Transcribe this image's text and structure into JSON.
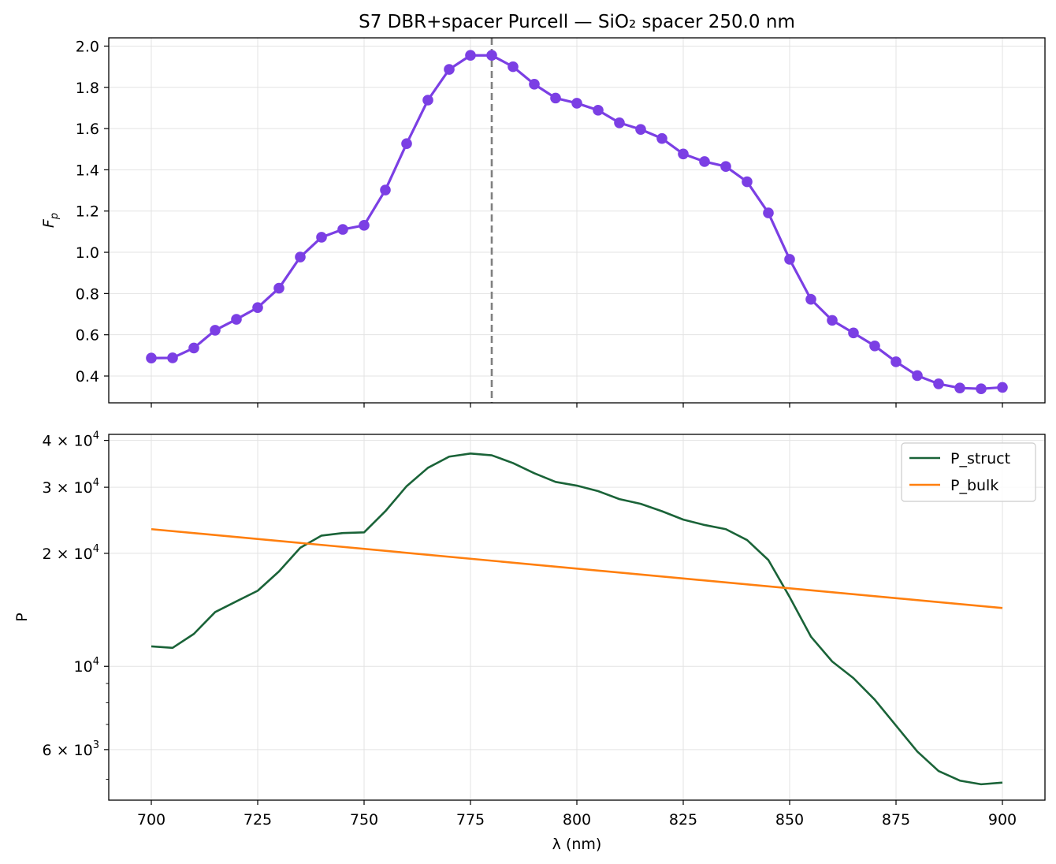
{
  "chart_data": [
    {
      "type": "line",
      "title": "S7 DBR+spacer Purcell — SiO₂ spacer 250.0 nm",
      "xlabel": "",
      "ylabel": "F_p",
      "xlim": [
        690,
        910
      ],
      "ylim": [
        0.27,
        2.04
      ],
      "xticks": [
        700,
        725,
        750,
        775,
        800,
        825,
        850,
        875,
        900
      ],
      "yticks": [
        0.4,
        0.6,
        0.8,
        1.0,
        1.2,
        1.4,
        1.6,
        1.8,
        2.0
      ],
      "ytick_labels": [
        "0.4",
        "0.6",
        "0.8",
        "1.0",
        "1.2",
        "1.4",
        "1.6",
        "1.8",
        "2.0"
      ],
      "grid": true,
      "vline": {
        "x": 780,
        "style": "dashed",
        "color": "#808080"
      },
      "series": [
        {
          "color": "#7b3fe4",
          "marker": "circle",
          "x": [
            700,
            705,
            710,
            715,
            720,
            725,
            730,
            735,
            740,
            745,
            750,
            755,
            760,
            765,
            770,
            775,
            780,
            785,
            790,
            795,
            800,
            805,
            810,
            815,
            820,
            825,
            830,
            835,
            840,
            845,
            850,
            855,
            860,
            865,
            870,
            875,
            880,
            885,
            890,
            895,
            900
          ],
          "values": [
            0.487,
            0.488,
            0.536,
            0.622,
            0.675,
            0.732,
            0.826,
            0.977,
            1.073,
            1.111,
            1.131,
            1.302,
            1.527,
            1.738,
            1.887,
            1.955,
            1.955,
            1.9,
            1.815,
            1.748,
            1.723,
            1.689,
            1.628,
            1.596,
            1.552,
            1.477,
            1.44,
            1.416,
            1.342,
            1.191,
            0.966,
            0.772,
            0.67,
            0.609,
            0.546,
            0.469,
            0.402,
            0.362,
            0.342,
            0.338,
            0.345
          ]
        }
      ]
    },
    {
      "type": "line",
      "title": "",
      "xlabel": "λ (nm)",
      "ylabel": "P",
      "yscale": "log",
      "xlim": [
        690,
        910
      ],
      "ylim": [
        4400,
        41500
      ],
      "xticks": [
        700,
        725,
        750,
        775,
        800,
        825,
        850,
        875,
        900
      ],
      "major_yticks": [
        {
          "value": 6000,
          "base": "6 × 10",
          "exp": "3"
        },
        {
          "value": 10000,
          "base": "10",
          "exp": "4"
        },
        {
          "value": 20000,
          "base": "2 × 10",
          "exp": "4"
        },
        {
          "value": 30000,
          "base": "3 × 10",
          "exp": "4"
        },
        {
          "value": 40000,
          "base": "4 × 10",
          "exp": "4"
        }
      ],
      "minor_yticks": [
        5000,
        7000,
        8000,
        9000
      ],
      "grid": true,
      "legend": {
        "position": "top-right"
      },
      "series": [
        {
          "name": "P_struct",
          "color": "#1a6338",
          "x": [
            700,
            705,
            710,
            715,
            720,
            725,
            730,
            735,
            740,
            745,
            750,
            755,
            760,
            765,
            770,
            775,
            780,
            785,
            790,
            795,
            800,
            805,
            810,
            815,
            820,
            825,
            830,
            835,
            840,
            845,
            850,
            855,
            860,
            865,
            870,
            875,
            880,
            885,
            890,
            895,
            900
          ],
          "values": [
            11300,
            11200,
            12200,
            13950,
            14900,
            15900,
            17900,
            20700,
            22300,
            22650,
            22750,
            25900,
            30200,
            33800,
            36200,
            36900,
            36500,
            34800,
            32700,
            31000,
            30300,
            29300,
            27900,
            27100,
            25900,
            24600,
            23800,
            23200,
            21700,
            19200,
            15300,
            12000,
            10300,
            9300,
            8150,
            6950,
            5930,
            5260,
            4960,
            4850,
            4900
          ]
        },
        {
          "name": "P_bulk",
          "color": "#ff7f0e",
          "x": [
            700,
            900
          ],
          "values": [
            23200,
            14300
          ]
        }
      ]
    }
  ]
}
